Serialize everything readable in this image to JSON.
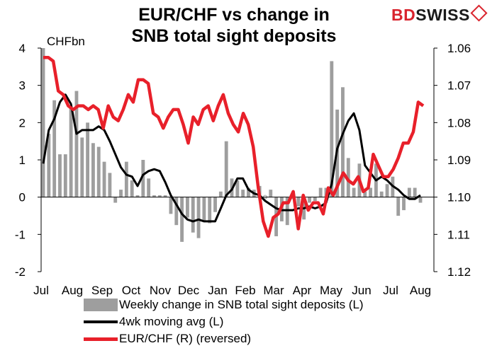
{
  "chart": {
    "title_line1": "EUR/CHF vs change in",
    "title_line2": "SNB total sight deposits",
    "brand_bd": "BD",
    "brand_swiss": "SWISS",
    "unit_label": "CHFbn"
  },
  "colors": {
    "bars": "#9e9e9e",
    "moving_avg": "#000000",
    "eurchf": "#e8202a",
    "brand_red": "#d9232d"
  },
  "chart_data": {
    "type": "bar+line",
    "x_labels": [
      "Jul",
      "Aug",
      "Sep",
      "Oct",
      "Nov",
      "Dec",
      "Jan",
      "Feb",
      "Mar",
      "Apr",
      "May",
      "Jun",
      "Jul",
      "Aug"
    ],
    "y_left": {
      "ticks": [
        "4",
        "3",
        "2",
        "1",
        "0",
        "-1",
        "-2"
      ],
      "range": [
        -2,
        4
      ]
    },
    "y_right": {
      "ticks": [
        "1.06",
        "1.07",
        "1.08",
        "1.09",
        "1.10",
        "1.11",
        "1.12"
      ],
      "range": [
        1.06,
        1.12
      ],
      "reversed": true
    },
    "series": [
      {
        "name": "Weekly change in SNB total sight deposits (L)",
        "type": "bar",
        "axis": "left",
        "values": [
          4.0,
          1.7,
          2.6,
          1.15,
          1.15,
          2.4,
          2.85,
          1.6,
          2.0,
          1.45,
          1.35,
          0.95,
          0.65,
          -0.15,
          0.2,
          0.95,
          0.45,
          0.05,
          1.0,
          0.5,
          0.05,
          0.05,
          0.05,
          -0.45,
          -0.75,
          -1.2,
          -0.55,
          -0.95,
          -1.1,
          -0.65,
          -0.7,
          -0.4,
          0.15,
          1.5,
          0.5,
          0.45,
          0.2,
          0.25,
          0.2,
          0.3,
          0.0,
          0.2,
          -1.05,
          -0.65,
          -0.75,
          -0.05,
          -0.25,
          -0.6,
          -0.15,
          -0.1,
          0.25,
          0.25,
          3.65,
          2.35,
          2.95,
          1.05,
          0.25,
          0.9,
          0.15,
          0.25,
          0.9,
          0.15,
          0.35,
          0.55,
          -0.5,
          -0.35,
          0.25,
          0.25,
          -0.15
        ]
      },
      {
        "name": "4wk moving avg (L)",
        "type": "line",
        "axis": "left",
        "values": [
          0.9,
          1.8,
          2.1,
          2.55,
          2.75,
          2.5,
          1.7,
          1.8,
          1.8,
          1.8,
          1.9,
          1.8,
          1.5,
          1.15,
          0.8,
          0.6,
          0.55,
          0.3,
          0.6,
          0.7,
          0.75,
          0.7,
          0.4,
          0.05,
          -0.2,
          -0.45,
          -0.6,
          -0.65,
          -0.6,
          -0.65,
          -0.65,
          -0.65,
          -0.3,
          0.05,
          0.2,
          0.5,
          0.5,
          0.2,
          0.1,
          0.05,
          -0.1,
          -0.2,
          -0.3,
          -0.35,
          -0.35,
          -0.35,
          -0.3,
          -0.3,
          -0.25,
          -0.3,
          -0.25,
          -0.15,
          0.35,
          1.3,
          1.7,
          2.05,
          2.25,
          1.8,
          0.85,
          0.65,
          0.45,
          0.55,
          0.45,
          0.3,
          0.2,
          0.05,
          -0.05,
          -0.05,
          0.05
        ]
      },
      {
        "name": "EUR/CHF (R) (reversed)",
        "type": "line",
        "axis": "right",
        "values": [
          1.0625,
          1.0625,
          1.0635,
          1.0715,
          1.0725,
          1.0755,
          1.0765,
          1.0755,
          1.0755,
          1.0765,
          1.0755,
          1.0765,
          1.0815,
          1.0755,
          1.0785,
          1.0795,
          1.0765,
          1.0725,
          1.0745,
          1.0685,
          1.0685,
          1.0695,
          1.0775,
          1.0785,
          1.0815,
          1.0785,
          1.0765,
          1.0765,
          1.0805,
          1.0855,
          1.0785,
          1.0805,
          1.0765,
          1.0755,
          1.0795,
          1.0755,
          1.0725,
          1.0775,
          1.0805,
          1.0825,
          1.0775,
          1.0805,
          1.0865,
          1.0975,
          1.1065,
          1.1105,
          1.1055,
          1.1045,
          1.1015,
          1.1015,
          1.0985,
          1.1085,
          1.0995,
          1.1035,
          1.1015,
          1.1015,
          1.1045,
          1.0975,
          1.0995,
          1.0965,
          1.0935,
          1.0955,
          1.0965,
          1.0945,
          1.0985,
          1.0975,
          1.0885,
          1.0915,
          1.0945,
          1.0945,
          1.0925,
          1.0895,
          1.0855,
          1.0855,
          1.0825,
          1.0745,
          1.0755
        ]
      }
    ],
    "legend": {
      "bars": "Weekly change in SNB total sight deposits (L)",
      "moving_avg": "4wk moving avg (L)",
      "eurchf": "EUR/CHF (R) (reversed)"
    }
  }
}
